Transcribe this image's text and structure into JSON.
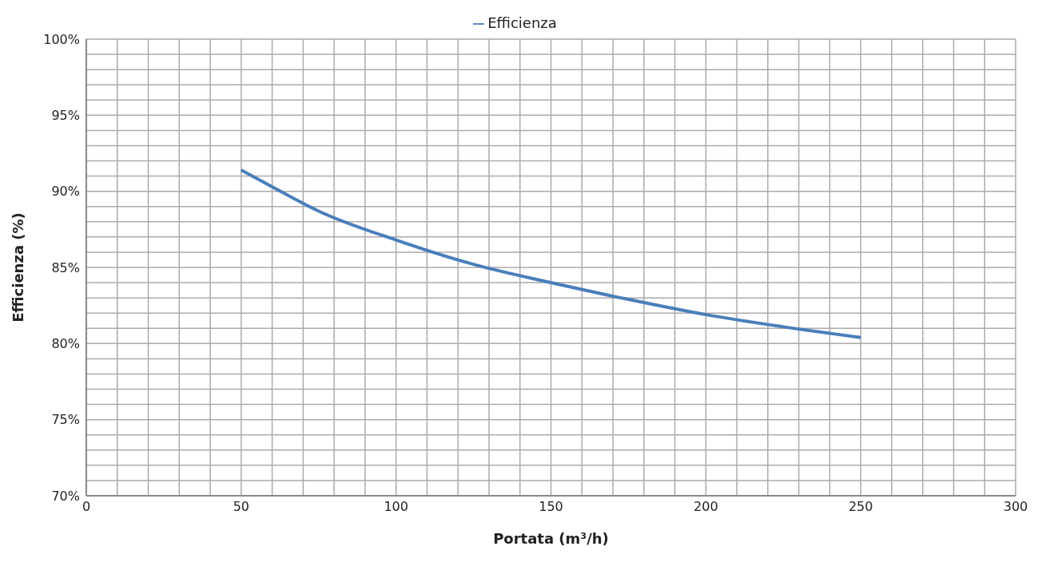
{
  "chart_data": {
    "type": "line",
    "xlabel": "Portata (m³/h)",
    "ylabel": "Efficienza (%)",
    "x": [
      50,
      60,
      75,
      100,
      125,
      150,
      175,
      200,
      225,
      250
    ],
    "series": [
      {
        "name": "Efficienza",
        "color": "#4a7ebb",
        "values": [
          91.4,
          90.3,
          88.7,
          86.8,
          85.2,
          84.0,
          82.9,
          81.9,
          81.1,
          80.4
        ]
      }
    ],
    "xlim": [
      0,
      300
    ],
    "xticks": [
      0,
      {
        "value": 10,
        "label": null
      },
      {
        "value": 20,
        "label": null
      },
      {
        "value": 30,
        "label": null
      },
      {
        "value": 40,
        "label": null
      },
      50,
      {
        "value": 60,
        "label": null
      },
      {
        "value": 70,
        "label": null
      },
      {
        "value": 80,
        "label": null
      },
      {
        "value": 90,
        "label": null
      },
      100,
      {
        "value": 110,
        "label": null
      },
      {
        "value": 120,
        "label": null
      },
      {
        "value": 130,
        "label": null
      },
      {
        "value": 140,
        "label": null
      },
      150,
      {
        "value": 160,
        "label": null
      },
      {
        "value": 170,
        "label": null
      },
      {
        "value": 180,
        "label": null
      },
      {
        "value": 190,
        "label": null
      },
      200,
      {
        "value": 210,
        "label": null
      },
      {
        "value": 220,
        "label": null
      },
      {
        "value": 230,
        "label": null
      },
      {
        "value": 240,
        "label": null
      },
      250,
      {
        "value": 260,
        "label": null
      },
      {
        "value": 270,
        "label": null
      },
      {
        "value": 280,
        "label": null
      },
      {
        "value": 290,
        "label": null
      },
      300
    ],
    "ylim": [
      70,
      100
    ],
    "yticks": [
      {
        "value": 70,
        "label": "70%"
      },
      {
        "value": 71,
        "label": null
      },
      {
        "value": 72,
        "label": null
      },
      {
        "value": 73,
        "label": null
      },
      {
        "value": 74,
        "label": null
      },
      {
        "value": 75,
        "label": "75%"
      },
      {
        "value": 76,
        "label": null
      },
      {
        "value": 77,
        "label": null
      },
      {
        "value": 78,
        "label": null
      },
      {
        "value": 79,
        "label": null
      },
      {
        "value": 80,
        "label": "80%"
      },
      {
        "value": 81,
        "label": null
      },
      {
        "value": 82,
        "label": null
      },
      {
        "value": 83,
        "label": null
      },
      {
        "value": 84,
        "label": null
      },
      {
        "value": 85,
        "label": "85%"
      },
      {
        "value": 86,
        "label": null
      },
      {
        "value": 87,
        "label": null
      },
      {
        "value": 88,
        "label": null
      },
      {
        "value": 89,
        "label": null
      },
      {
        "value": 90,
        "label": "90%"
      },
      {
        "value": 91,
        "label": null
      },
      {
        "value": 92,
        "label": null
      },
      {
        "value": 93,
        "label": null
      },
      {
        "value": 94,
        "label": null
      },
      {
        "value": 95,
        "label": "95%"
      },
      {
        "value": 96,
        "label": null
      },
      {
        "value": 97,
        "label": null
      },
      {
        "value": 98,
        "label": null
      },
      {
        "value": 99,
        "label": null
      },
      {
        "value": 100,
        "label": "100%"
      }
    ],
    "grid": true,
    "legend": "top",
    "marker": "none",
    "line_style": "solid"
  }
}
